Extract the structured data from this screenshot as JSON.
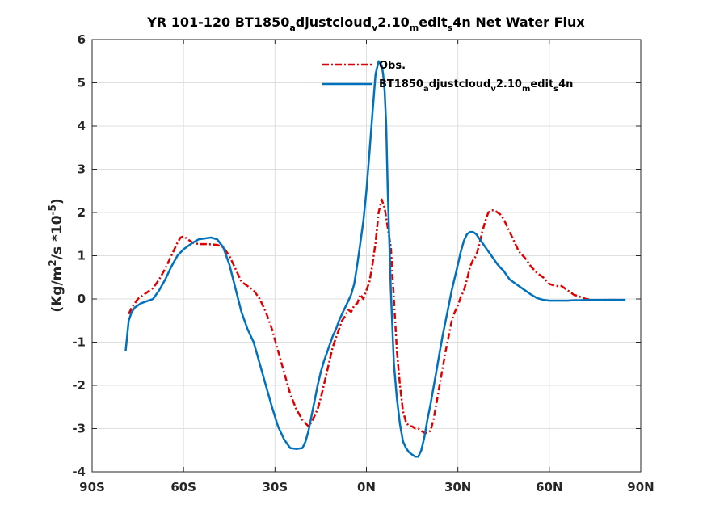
{
  "chart_data": {
    "type": "line",
    "title": {
      "prefix": "YR 101-120 BT1850",
      "sub1": "a",
      "mid1": "djustcloud",
      "sub2": "v",
      "mid2": "2.10",
      "sub3": "m",
      "mid3": "edit",
      "sub4": "s",
      "suffix": "4n  Net Water Flux"
    },
    "ylabel": {
      "prefix": "(Kg/m",
      "sup1": "2",
      "mid": "/s *10",
      "sup2": "-5",
      "suffix": ")"
    },
    "xlim": [
      -90,
      90
    ],
    "ylim": [
      -4,
      6
    ],
    "xticks": [
      -90,
      -60,
      -30,
      0,
      30,
      60,
      90
    ],
    "xtick_labels": [
      "90S",
      "60S",
      "30S",
      "0N",
      "30N",
      "60N",
      "90N"
    ],
    "yticks": [
      -4,
      -3,
      -2,
      -1,
      0,
      1,
      2,
      3,
      4,
      5,
      6
    ],
    "ytick_labels": [
      "-4",
      "-3",
      "-2",
      "-1",
      "0",
      "1",
      "2",
      "3",
      "4",
      "5",
      "6"
    ],
    "grid": true,
    "legend_position": "top-center",
    "series": [
      {
        "name": "Obs.",
        "color": "#e00000",
        "dash": "dash-dot",
        "x": [
          -78,
          -77,
          -75,
          -73,
          -70,
          -68,
          -66,
          -64,
          -62,
          -61,
          -60,
          -59,
          -57,
          -55,
          -52,
          -49,
          -47,
          -45,
          -43,
          -41,
          -39,
          -37,
          -35,
          -33,
          -31,
          -29,
          -27,
          -25,
          -23,
          -21,
          -19,
          -18,
          -17,
          -16,
          -15,
          -14,
          -13,
          -12,
          -11,
          -10,
          -9,
          -8,
          -7,
          -6,
          -5,
          -4,
          -3,
          -2,
          -1,
          0,
          1,
          2,
          3,
          4,
          5,
          6,
          7,
          8,
          9,
          10,
          11,
          12,
          13,
          14,
          15,
          16,
          17,
          18,
          19,
          20,
          21,
          22,
          23,
          24,
          25,
          26,
          27,
          28,
          29,
          30,
          31,
          32,
          33,
          34,
          35,
          36,
          37,
          38,
          39,
          40,
          41,
          42,
          43,
          44,
          45,
          46,
          47,
          48,
          49,
          50,
          52,
          54,
          56,
          58,
          60,
          62,
          64,
          66,
          68,
          70,
          72,
          74,
          76,
          78,
          80,
          82,
          85
        ],
        "y": [
          -0.35,
          -0.2,
          0.0,
          0.1,
          0.25,
          0.45,
          0.7,
          1.0,
          1.3,
          1.42,
          1.45,
          1.4,
          1.3,
          1.27,
          1.27,
          1.25,
          1.2,
          1.0,
          0.7,
          0.4,
          0.3,
          0.2,
          0.0,
          -0.3,
          -0.7,
          -1.2,
          -1.7,
          -2.2,
          -2.55,
          -2.8,
          -2.95,
          -2.85,
          -2.7,
          -2.55,
          -2.3,
          -2.0,
          -1.7,
          -1.4,
          -1.1,
          -0.9,
          -0.7,
          -0.5,
          -0.4,
          -0.25,
          -0.3,
          -0.15,
          -0.1,
          0.1,
          0.0,
          0.2,
          0.4,
          0.8,
          1.3,
          2.0,
          2.3,
          2.1,
          1.65,
          1.2,
          0.0,
          -1.2,
          -2.0,
          -2.6,
          -2.85,
          -2.95,
          -2.95,
          -3.0,
          -3.0,
          -3.05,
          -3.1,
          -3.1,
          -3.05,
          -2.8,
          -2.4,
          -2.0,
          -1.6,
          -1.2,
          -0.85,
          -0.5,
          -0.3,
          -0.15,
          0.05,
          0.2,
          0.45,
          0.75,
          0.9,
          1.0,
          1.25,
          1.55,
          1.8,
          2.0,
          2.05,
          2.05,
          2.0,
          1.95,
          1.85,
          1.7,
          1.55,
          1.4,
          1.25,
          1.1,
          0.95,
          0.75,
          0.6,
          0.5,
          0.35,
          0.3,
          0.3,
          0.2,
          0.1,
          0.05,
          0.0,
          -0.02,
          -0.03,
          -0.02,
          -0.02,
          -0.02,
          -0.02
        ]
      },
      {
        "name": "BT1850adjustcloudv2.10meditS4n",
        "color": "#0072bd",
        "dash": "solid",
        "x": [
          -79,
          -78,
          -77,
          -76,
          -74,
          -72,
          -70,
          -68,
          -66,
          -64,
          -62,
          -60,
          -57,
          -55,
          -53,
          -51,
          -49,
          -47,
          -45,
          -43,
          -41,
          -39,
          -37,
          -35,
          -33,
          -31,
          -29,
          -27,
          -25,
          -23,
          -21,
          -20,
          -19,
          -18,
          -17,
          -16,
          -15,
          -14,
          -13,
          -12,
          -11,
          -10,
          -9,
          -8,
          -7,
          -6,
          -5,
          -4,
          -3,
          -2,
          -1,
          0,
          1,
          2,
          3,
          4,
          5,
          5.5,
          6,
          6.5,
          7,
          8,
          9,
          10,
          11,
          12,
          13,
          14,
          15,
          16,
          17,
          18,
          19,
          20,
          21,
          22,
          23,
          24,
          25,
          26,
          27,
          28,
          29,
          30,
          31,
          32,
          33,
          34,
          35,
          36,
          37,
          38,
          39,
          40,
          41,
          42,
          43,
          44,
          45,
          46,
          47,
          48,
          49,
          50,
          52,
          54,
          56,
          58,
          60,
          62,
          64,
          66,
          68,
          70,
          72,
          74,
          76,
          78,
          80,
          82,
          85
        ],
        "y": [
          -1.2,
          -0.5,
          -0.3,
          -0.2,
          -0.1,
          -0.05,
          0.0,
          0.2,
          0.45,
          0.75,
          1.0,
          1.15,
          1.3,
          1.38,
          1.4,
          1.42,
          1.38,
          1.2,
          0.8,
          0.25,
          -0.3,
          -0.7,
          -1.0,
          -1.5,
          -2.0,
          -2.5,
          -2.95,
          -3.25,
          -3.45,
          -3.47,
          -3.45,
          -3.3,
          -3.05,
          -2.7,
          -2.35,
          -2.0,
          -1.7,
          -1.45,
          -1.25,
          -1.05,
          -0.85,
          -0.7,
          -0.5,
          -0.35,
          -0.2,
          -0.05,
          0.1,
          0.35,
          0.8,
          1.3,
          1.8,
          2.5,
          3.4,
          4.3,
          5.2,
          5.5,
          5.4,
          5.2,
          4.8,
          4.0,
          2.5,
          0.2,
          -1.5,
          -2.3,
          -2.9,
          -3.3,
          -3.45,
          -3.55,
          -3.6,
          -3.65,
          -3.65,
          -3.5,
          -3.2,
          -2.8,
          -2.45,
          -2.05,
          -1.65,
          -1.25,
          -0.85,
          -0.5,
          -0.15,
          0.2,
          0.5,
          0.8,
          1.1,
          1.35,
          1.5,
          1.55,
          1.55,
          1.5,
          1.4,
          1.3,
          1.2,
          1.1,
          1.0,
          0.9,
          0.8,
          0.72,
          0.65,
          0.55,
          0.45,
          0.4,
          0.35,
          0.3,
          0.2,
          0.1,
          0.02,
          -0.02,
          -0.04,
          -0.04,
          -0.04,
          -0.04,
          -0.03,
          -0.03,
          -0.02,
          -0.02,
          -0.02,
          -0.02,
          -0.02,
          -0.02,
          -0.02
        ]
      }
    ],
    "legend": {
      "obs_label": "Obs.",
      "model_label": {
        "prefix": "BT1850",
        "sub1": "a",
        "mid1": "djustcloud",
        "sub2": "v",
        "mid2": "2.10",
        "sub3": "m",
        "mid3": "edit",
        "sub4": "s",
        "suffix": "4n"
      }
    }
  }
}
